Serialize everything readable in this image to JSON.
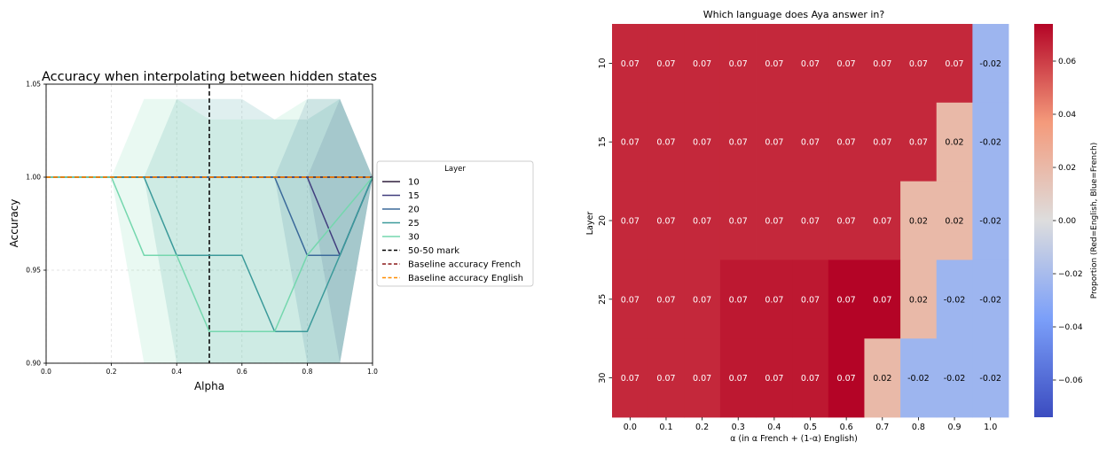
{
  "chart_data": [
    {
      "type": "line",
      "title": "Accuracy when interpolating between hidden states",
      "xlabel": "Alpha",
      "ylabel": "Accuracy",
      "xlim": [
        0.0,
        1.0
      ],
      "ylim": [
        0.9,
        1.05
      ],
      "x_ticks": [
        "0.0",
        "0.2",
        "0.4",
        "0.6",
        "0.8",
        "1.0"
      ],
      "y_ticks": [
        "0.90",
        "0.95",
        "1.00",
        "1.05"
      ],
      "grid": true,
      "x": [
        0.0,
        0.1,
        0.2,
        0.3,
        0.4,
        0.5,
        0.6,
        0.7,
        0.8,
        0.9,
        1.0
      ],
      "legend": {
        "title": "Layer",
        "placement": "outside-right"
      },
      "series": [
        {
          "name": "10",
          "color": "#2e1e3b",
          "values": [
            1,
            1,
            1,
            1,
            1,
            1,
            1,
            1,
            1,
            1,
            1
          ],
          "band": [
            [
              1,
              1
            ],
            [
              1,
              1
            ],
            [
              1,
              1
            ],
            [
              1,
              1
            ],
            [
              1,
              1
            ],
            [
              1,
              1
            ],
            [
              1,
              1
            ],
            [
              1,
              1
            ],
            [
              1,
              1
            ],
            [
              1,
              1
            ],
            [
              1,
              1
            ]
          ]
        },
        {
          "name": "15",
          "color": "#413e7e",
          "values": [
            1,
            1,
            1,
            1,
            1,
            1,
            1,
            1,
            1,
            0.958,
            1
          ],
          "band": [
            [
              1,
              1
            ],
            [
              1,
              1
            ],
            [
              1,
              1
            ],
            [
              1,
              1
            ],
            [
              1,
              1
            ],
            [
              1,
              1
            ],
            [
              1,
              1
            ],
            [
              1,
              1
            ],
            [
              1,
              1
            ],
            [
              0.9,
              1.042
            ],
            [
              1,
              1
            ]
          ]
        },
        {
          "name": "20",
          "color": "#3b6a9a",
          "values": [
            1,
            1,
            1,
            1,
            1,
            1,
            1,
            1,
            0.958,
            0.958,
            1
          ],
          "band": [
            [
              1,
              1
            ],
            [
              1,
              1
            ],
            [
              1,
              1
            ],
            [
              1,
              1
            ],
            [
              1,
              1
            ],
            [
              1,
              1
            ],
            [
              1,
              1
            ],
            [
              1,
              1
            ],
            [
              0.875,
              1.042
            ],
            [
              0.875,
              1.042
            ],
            [
              1,
              1
            ]
          ]
        },
        {
          "name": "25",
          "color": "#3b9a9a",
          "values": [
            1,
            1,
            1,
            1,
            0.958,
            0.958,
            0.958,
            0.917,
            0.917,
            0.958,
            1
          ],
          "band": [
            [
              1,
              1
            ],
            [
              1,
              1
            ],
            [
              1,
              1
            ],
            [
              1,
              1
            ],
            [
              0.875,
              1.042
            ],
            [
              0.875,
              1.042
            ],
            [
              0.875,
              1.042
            ],
            [
              0.854,
              1.031
            ],
            [
              0.854,
              1.031
            ],
            [
              0.875,
              1.042
            ],
            [
              1,
              1
            ]
          ]
        },
        {
          "name": "30",
          "color": "#75d7ae",
          "values": [
            1,
            1,
            1,
            0.958,
            0.958,
            0.917,
            0.917,
            0.917,
            0.958,
            0.979,
            1
          ],
          "band": [
            [
              1,
              1
            ],
            [
              1,
              1
            ],
            [
              1,
              1
            ],
            [
              0.875,
              1.042
            ],
            [
              0.875,
              1.042
            ],
            [
              0.854,
              1.031
            ],
            [
              0.854,
              1.031
            ],
            [
              0.854,
              1.031
            ],
            [
              0.875,
              1.042
            ],
            [
              0.9,
              1.042
            ],
            [
              1,
              1
            ]
          ]
        },
        {
          "name": "50-50 mark",
          "color": "#000000",
          "style": "dashed",
          "vline": 0.5
        },
        {
          "name": "Baseline accuracy French",
          "color": "#8b1a1a",
          "style": "dashed",
          "hline": 1.0
        },
        {
          "name": "Baseline accuracy English",
          "color": "#ff8c00",
          "style": "dashed",
          "hline": 1.0
        }
      ]
    },
    {
      "type": "heatmap",
      "title": "Which language does Aya answer in?",
      "xlabel": "α (in α French + (1-α) English)",
      "ylabel": "Layer",
      "x_categories": [
        "0.0",
        "0.1",
        "0.2",
        "0.3",
        "0.4",
        "0.5",
        "0.6",
        "0.7",
        "0.8",
        "0.9",
        "1.0"
      ],
      "y_categories": [
        "10",
        "15",
        "20",
        "25",
        "30"
      ],
      "values": [
        [
          0.065,
          0.065,
          0.065,
          0.065,
          0.065,
          0.065,
          0.065,
          0.065,
          0.065,
          0.065,
          -0.024
        ],
        [
          0.065,
          0.065,
          0.065,
          0.065,
          0.065,
          0.065,
          0.065,
          0.065,
          0.065,
          0.02,
          -0.024
        ],
        [
          0.065,
          0.065,
          0.065,
          0.065,
          0.065,
          0.065,
          0.065,
          0.065,
          0.02,
          0.02,
          -0.024
        ],
        [
          0.065,
          0.065,
          0.065,
          0.069,
          0.069,
          0.069,
          0.074,
          0.074,
          0.02,
          -0.024,
          -0.024
        ],
        [
          0.065,
          0.065,
          0.065,
          0.069,
          0.069,
          0.069,
          0.074,
          0.02,
          -0.024,
          -0.024,
          -0.024
        ]
      ],
      "labels": [
        [
          "0.07",
          "0.07",
          "0.07",
          "0.07",
          "0.07",
          "0.07",
          "0.07",
          "0.07",
          "0.07",
          "0.07",
          "-0.02"
        ],
        [
          "0.07",
          "0.07",
          "0.07",
          "0.07",
          "0.07",
          "0.07",
          "0.07",
          "0.07",
          "0.07",
          "0.02",
          "-0.02"
        ],
        [
          "0.07",
          "0.07",
          "0.07",
          "0.07",
          "0.07",
          "0.07",
          "0.07",
          "0.07",
          "0.02",
          "0.02",
          "-0.02"
        ],
        [
          "0.07",
          "0.07",
          "0.07",
          "0.07",
          "0.07",
          "0.07",
          "0.07",
          "0.07",
          "0.02",
          "-0.02",
          "-0.02"
        ],
        [
          "0.07",
          "0.07",
          "0.07",
          "0.07",
          "0.07",
          "0.07",
          "0.07",
          "0.02",
          "-0.02",
          "-0.02",
          "-0.02"
        ]
      ],
      "colorbar": {
        "label": "Proportion (Red=English, Blue=French)",
        "range": [
          -0.074,
          0.074
        ],
        "ticks": [
          0.06,
          0.04,
          0.02,
          0.0,
          -0.02,
          -0.04,
          -0.06
        ],
        "tick_labels": [
          "0.06",
          "0.04",
          "0.02",
          "0.00",
          "−0.02",
          "−0.04",
          "−0.06"
        ],
        "colormap": "coolwarm"
      }
    }
  ]
}
